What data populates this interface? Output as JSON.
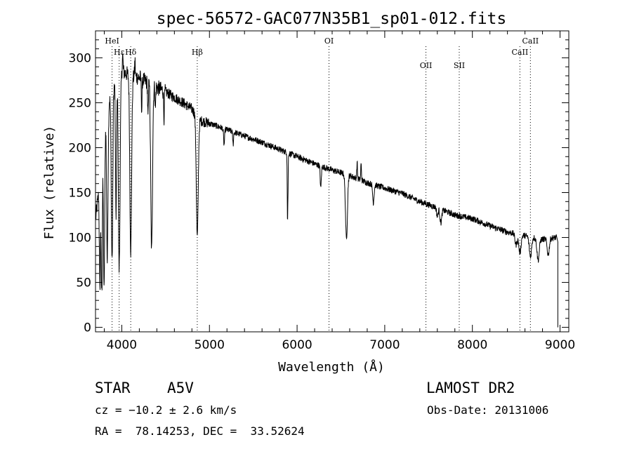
{
  "chart_data": {
    "type": "line",
    "title": "spec-56572-GAC077N35B1_sp01-012.fits",
    "xlabel": "Wavelength (Å)",
    "ylabel": "Flux (relative)",
    "xlim": [
      3700,
      9100
    ],
    "ylim": [
      -5,
      330
    ],
    "xticks": [
      4000,
      5000,
      6000,
      7000,
      8000,
      9000
    ],
    "yticks": [
      0,
      50,
      100,
      150,
      200,
      250,
      300
    ],
    "grid": false,
    "continuum": [
      [
        3700,
        120
      ],
      [
        3760,
        170
      ],
      [
        3820,
        240
      ],
      [
        3900,
        270
      ],
      [
        4000,
        285
      ],
      [
        4100,
        280
      ],
      [
        4200,
        278
      ],
      [
        4300,
        272
      ],
      [
        4400,
        267
      ],
      [
        4500,
        262
      ],
      [
        4600,
        256
      ],
      [
        4700,
        250
      ],
      [
        4800,
        243
      ],
      [
        4900,
        230
      ],
      [
        5000,
        227
      ],
      [
        5200,
        220
      ],
      [
        5400,
        213
      ],
      [
        5600,
        206
      ],
      [
        5800,
        198
      ],
      [
        6000,
        190
      ],
      [
        6200,
        182
      ],
      [
        6400,
        175
      ],
      [
        6600,
        169
      ],
      [
        6800,
        161
      ],
      [
        7000,
        155
      ],
      [
        7200,
        149
      ],
      [
        7400,
        140
      ],
      [
        7600,
        133
      ],
      [
        7800,
        125
      ],
      [
        8000,
        121
      ],
      [
        8200,
        113
      ],
      [
        8400,
        106
      ],
      [
        8600,
        102
      ],
      [
        8800,
        98
      ],
      [
        8960,
        100
      ]
    ],
    "absorption_lines": [
      {
        "center": 3750,
        "depth": 120,
        "width": 6
      },
      {
        "center": 3771,
        "depth": 170,
        "width": 6
      },
      {
        "center": 3798,
        "depth": 175,
        "width": 7
      },
      {
        "center": 3835,
        "depth": 180,
        "width": 8
      },
      {
        "center": 3889,
        "depth": 190,
        "width": 9
      },
      {
        "center": 3934,
        "depth": 150,
        "width": 6
      },
      {
        "center": 3970,
        "depth": 215,
        "width": 10
      },
      {
        "center": 4102,
        "depth": 195,
        "width": 10
      },
      {
        "center": 4227,
        "depth": 35,
        "width": 4
      },
      {
        "center": 4300,
        "depth": 40,
        "width": 5
      },
      {
        "center": 4340,
        "depth": 185,
        "width": 10
      },
      {
        "center": 4383,
        "depth": 25,
        "width": 4
      },
      {
        "center": 4481,
        "depth": 30,
        "width": 4
      },
      {
        "center": 4861,
        "depth": 135,
        "width": 11
      },
      {
        "center": 5167,
        "depth": 18,
        "width": 6
      },
      {
        "center": 5270,
        "depth": 14,
        "width": 5
      },
      {
        "center": 5890,
        "depth": 70,
        "width": 3
      },
      {
        "center": 5896,
        "depth": 40,
        "width": 3
      },
      {
        "center": 6270,
        "depth": 25,
        "width": 6
      },
      {
        "center": 6563,
        "depth": 72,
        "width": 11
      },
      {
        "center": 6870,
        "depth": 20,
        "width": 8
      },
      {
        "center": 7600,
        "depth": 10,
        "width": 8
      },
      {
        "center": 7640,
        "depth": 15,
        "width": 10
      },
      {
        "center": 8498,
        "depth": 12,
        "width": 12
      },
      {
        "center": 8542,
        "depth": 20,
        "width": 13
      },
      {
        "center": 8662,
        "depth": 22,
        "width": 13
      },
      {
        "center": 8750,
        "depth": 24,
        "width": 13
      },
      {
        "center": 8865,
        "depth": 18,
        "width": 12
      }
    ],
    "emission_spikes": [
      3840,
      3903,
      3955,
      4010,
      4150,
      4310,
      6685,
      6730
    ],
    "marker_lines": [
      {
        "label": "Hδ",
        "x": 4102,
        "label_row": "low"
      },
      {
        "label": "Hε",
        "x": 3970,
        "label_row": "low"
      },
      {
        "label": "HeI",
        "x": 3889,
        "label_row": "high"
      },
      {
        "label": "Hβ",
        "x": 4861,
        "label_row": "low"
      },
      {
        "label": "OI",
        "x": 6364,
        "label_row": "high"
      },
      {
        "label": "OII",
        "x": 7470,
        "label_row": "mid"
      },
      {
        "label": "SII",
        "x": 7850,
        "label_row": "mid"
      },
      {
        "label": "CaII",
        "x": 8542,
        "label_row": "low"
      },
      {
        "label": "CaII",
        "x": 8662,
        "label_row": "high"
      }
    ]
  },
  "info": {
    "object_class": "STAR",
    "subclass": "A5V",
    "survey": "LAMOST DR2",
    "cz": "cz = −10.2 ± 2.6 km/s",
    "obs_date": "Obs-Date: 20131006",
    "coords": "RA =  78.14253, DEC =  33.52624"
  }
}
